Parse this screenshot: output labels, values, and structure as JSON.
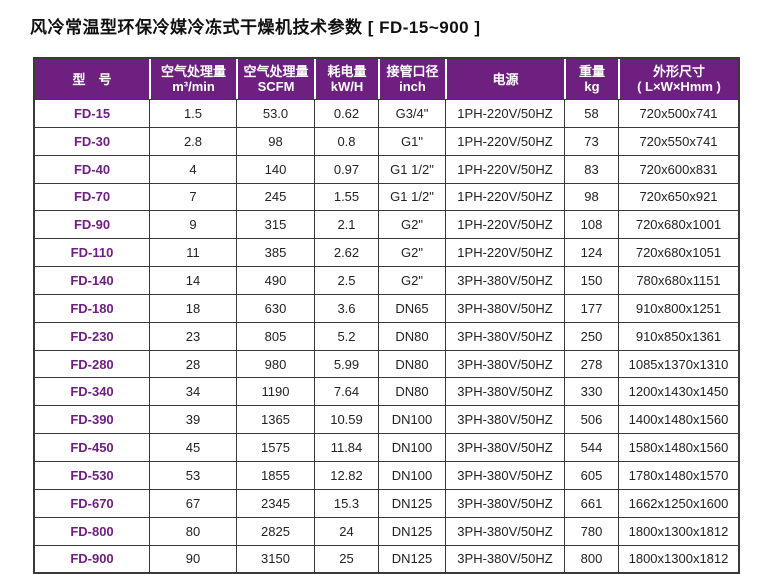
{
  "page": {
    "title": "风冷常温型环保冷媒冷冻式干燥机技术参数 [ FD-15~900 ]"
  },
  "colors": {
    "header_bg": "#6e2080",
    "header_text": "#ffffff",
    "model_text": "#6e2080",
    "border": "#3a3a3a",
    "body_text": "#222222"
  },
  "table": {
    "columns": [
      {
        "id": "model",
        "line1": "型　号",
        "line2": ""
      },
      {
        "id": "airflow_m3",
        "line1": "空气处理量",
        "line2": "m³/min"
      },
      {
        "id": "airflow_scfm",
        "line1": "空气处理量",
        "line2": "SCFM"
      },
      {
        "id": "power_kw",
        "line1": "耗电量",
        "line2": "kW/H"
      },
      {
        "id": "pipe_inch",
        "line1": "接管口径",
        "line2": "inch"
      },
      {
        "id": "power_supply",
        "line1": "电源",
        "line2": ""
      },
      {
        "id": "weight_kg",
        "line1": "重量",
        "line2": "kg"
      },
      {
        "id": "dimensions",
        "line1": "外形尺寸",
        "line2": "( L×W×Hmm )"
      }
    ],
    "rows": [
      {
        "model": "FD-15",
        "airflow_m3": "1.5",
        "airflow_scfm": "53.0",
        "power_kw": "0.62",
        "pipe_inch": "G3/4\"",
        "power_supply": "1PH-220V/50HZ",
        "weight_kg": "58",
        "dimensions": "720x500x741"
      },
      {
        "model": "FD-30",
        "airflow_m3": "2.8",
        "airflow_scfm": "98",
        "power_kw": "0.8",
        "pipe_inch": "G1\"",
        "power_supply": "1PH-220V/50HZ",
        "weight_kg": "73",
        "dimensions": "720x550x741"
      },
      {
        "model": "FD-40",
        "airflow_m3": "4",
        "airflow_scfm": "140",
        "power_kw": "0.97",
        "pipe_inch": "G1 1/2\"",
        "power_supply": "1PH-220V/50HZ",
        "weight_kg": "83",
        "dimensions": "720x600x831"
      },
      {
        "model": "FD-70",
        "airflow_m3": "7",
        "airflow_scfm": "245",
        "power_kw": "1.55",
        "pipe_inch": "G1 1/2\"",
        "power_supply": "1PH-220V/50HZ",
        "weight_kg": "98",
        "dimensions": "720x650x921"
      },
      {
        "model": "FD-90",
        "airflow_m3": "9",
        "airflow_scfm": "315",
        "power_kw": "2.1",
        "pipe_inch": "G2\"",
        "power_supply": "1PH-220V/50HZ",
        "weight_kg": "108",
        "dimensions": "720x680x1001"
      },
      {
        "model": "FD-110",
        "airflow_m3": "11",
        "airflow_scfm": "385",
        "power_kw": "2.62",
        "pipe_inch": "G2\"",
        "power_supply": "1PH-220V/50HZ",
        "weight_kg": "124",
        "dimensions": "720x680x1051"
      },
      {
        "model": "FD-140",
        "airflow_m3": "14",
        "airflow_scfm": "490",
        "power_kw": "2.5",
        "pipe_inch": "G2\"",
        "power_supply": "3PH-380V/50HZ",
        "weight_kg": "150",
        "dimensions": "780x680x1151"
      },
      {
        "model": "FD-180",
        "airflow_m3": "18",
        "airflow_scfm": "630",
        "power_kw": "3.6",
        "pipe_inch": "DN65",
        "power_supply": "3PH-380V/50HZ",
        "weight_kg": "177",
        "dimensions": "910x800x1251"
      },
      {
        "model": "FD-230",
        "airflow_m3": "23",
        "airflow_scfm": "805",
        "power_kw": "5.2",
        "pipe_inch": "DN80",
        "power_supply": "3PH-380V/50HZ",
        "weight_kg": "250",
        "dimensions": "910x850x1361"
      },
      {
        "model": "FD-280",
        "airflow_m3": "28",
        "airflow_scfm": "980",
        "power_kw": "5.99",
        "pipe_inch": "DN80",
        "power_supply": "3PH-380V/50HZ",
        "weight_kg": "278",
        "dimensions": "1085x1370x1310"
      },
      {
        "model": "FD-340",
        "airflow_m3": "34",
        "airflow_scfm": "1190",
        "power_kw": "7.64",
        "pipe_inch": "DN80",
        "power_supply": "3PH-380V/50HZ",
        "weight_kg": "330",
        "dimensions": "1200x1430x1450"
      },
      {
        "model": "FD-390",
        "airflow_m3": "39",
        "airflow_scfm": "1365",
        "power_kw": "10.59",
        "pipe_inch": "DN100",
        "power_supply": "3PH-380V/50HZ",
        "weight_kg": "506",
        "dimensions": "1400x1480x1560"
      },
      {
        "model": "FD-450",
        "airflow_m3": "45",
        "airflow_scfm": "1575",
        "power_kw": "11.84",
        "pipe_inch": "DN100",
        "power_supply": "3PH-380V/50HZ",
        "weight_kg": "544",
        "dimensions": "1580x1480x1560"
      },
      {
        "model": "FD-530",
        "airflow_m3": "53",
        "airflow_scfm": "1855",
        "power_kw": "12.82",
        "pipe_inch": "DN100",
        "power_supply": "3PH-380V/50HZ",
        "weight_kg": "605",
        "dimensions": "1780x1480x1570"
      },
      {
        "model": "FD-670",
        "airflow_m3": "67",
        "airflow_scfm": "2345",
        "power_kw": "15.3",
        "pipe_inch": "DN125",
        "power_supply": "3PH-380V/50HZ",
        "weight_kg": "661",
        "dimensions": "1662x1250x1600"
      },
      {
        "model": "FD-800",
        "airflow_m3": "80",
        "airflow_scfm": "2825",
        "power_kw": "24",
        "pipe_inch": "DN125",
        "power_supply": "3PH-380V/50HZ",
        "weight_kg": "780",
        "dimensions": "1800x1300x1812"
      },
      {
        "model": "FD-900",
        "airflow_m3": "90",
        "airflow_scfm": "3150",
        "power_kw": "25",
        "pipe_inch": "DN125",
        "power_supply": "3PH-380V/50HZ",
        "weight_kg": "800",
        "dimensions": "1800x1300x1812"
      }
    ]
  }
}
